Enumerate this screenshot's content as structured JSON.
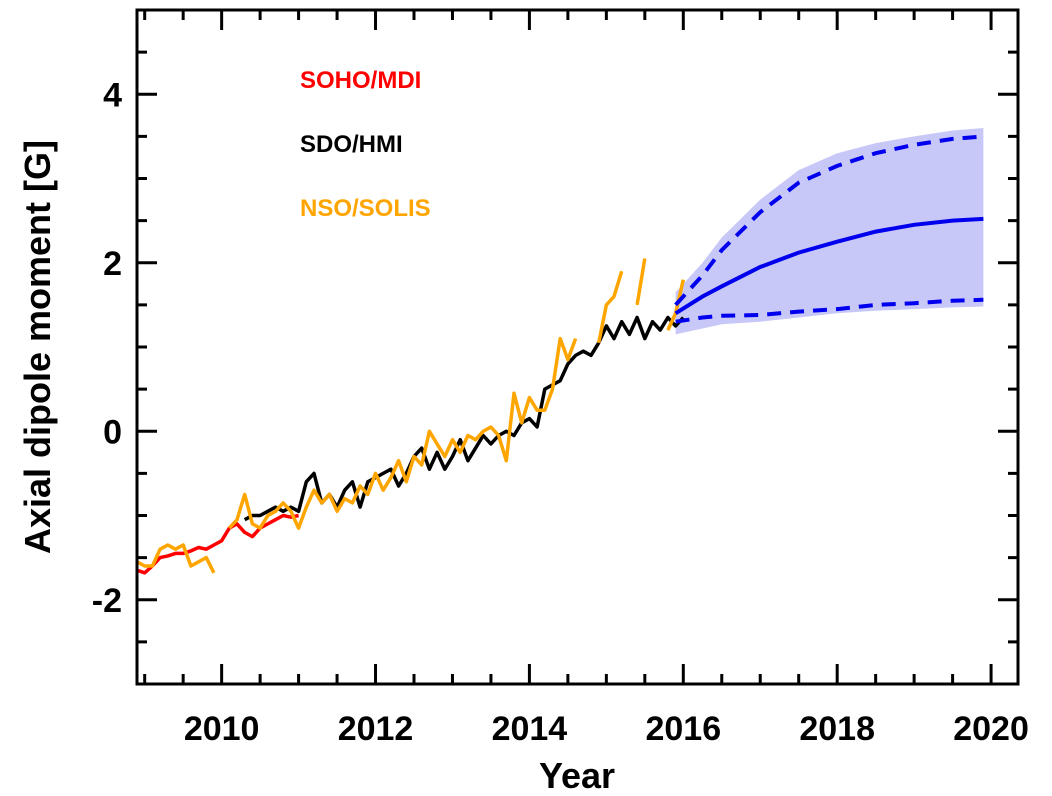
{
  "chart_data": {
    "type": "line",
    "xlabel": "Year",
    "ylabel": "Axial dipole moment [G]",
    "xlim": [
      2008.9,
      2020.35
    ],
    "ylim": [
      -3,
      5
    ],
    "xticks": [
      2010,
      2012,
      2014,
      2016,
      2018,
      2020
    ],
    "yticks": [
      -2,
      0,
      2,
      4
    ],
    "xminorticks": [
      2009,
      2009.5,
      2010.5,
      2011,
      2011.5,
      2012.5,
      2013,
      2013.5,
      2014.5,
      2015,
      2015.5,
      2016.5,
      2017,
      2017.5,
      2018.5,
      2019,
      2019.5
    ],
    "yminorticks": [
      -2.5,
      -1.5,
      -1,
      -0.5,
      0.5,
      1,
      1.5,
      2.5,
      3,
      3.5,
      4.5
    ],
    "series": [
      {
        "name": "SOHO/MDI",
        "color": "#ff0000",
        "x": [
          2008.9,
          2009.0,
          2009.1,
          2009.2,
          2009.3,
          2009.4,
          2009.5,
          2009.6,
          2009.7,
          2009.8,
          2009.9,
          2010.0,
          2010.1,
          2010.2,
          2010.3,
          2010.4,
          2010.5,
          2010.6,
          2010.7,
          2010.8,
          2010.9,
          2011.0
        ],
        "values": [
          -1.65,
          -1.68,
          -1.6,
          -1.5,
          -1.48,
          -1.45,
          -1.45,
          -1.42,
          -1.38,
          -1.4,
          -1.35,
          -1.3,
          -1.15,
          -1.1,
          -1.2,
          -1.25,
          -1.15,
          -1.1,
          -1.05,
          -1.0,
          -1.02,
          -1.0
        ]
      },
      {
        "name": "SDO/HMI",
        "color": "#000000",
        "x": [
          2010.3,
          2010.4,
          2010.5,
          2010.6,
          2010.7,
          2010.8,
          2010.9,
          2011.0,
          2011.1,
          2011.2,
          2011.3,
          2011.4,
          2011.5,
          2011.6,
          2011.7,
          2011.8,
          2011.9,
          2012.0,
          2012.1,
          2012.2,
          2012.3,
          2012.4,
          2012.5,
          2012.6,
          2012.7,
          2012.8,
          2012.9,
          2013.0,
          2013.1,
          2013.2,
          2013.3,
          2013.4,
          2013.5,
          2013.6,
          2013.7,
          2013.8,
          2013.9,
          2014.0,
          2014.1,
          2014.2,
          2014.3,
          2014.4,
          2014.5,
          2014.6,
          2014.7,
          2014.8,
          2014.9,
          2015.0,
          2015.1,
          2015.2,
          2015.3,
          2015.4,
          2015.5,
          2015.6,
          2015.7,
          2015.8,
          2015.9,
          2016.0
        ],
        "values": [
          -1.05,
          -1.0,
          -1.0,
          -0.95,
          -0.9,
          -0.95,
          -0.9,
          -0.95,
          -0.6,
          -0.5,
          -0.85,
          -0.75,
          -0.9,
          -0.7,
          -0.6,
          -0.9,
          -0.6,
          -0.55,
          -0.5,
          -0.45,
          -0.65,
          -0.5,
          -0.3,
          -0.2,
          -0.45,
          -0.25,
          -0.45,
          -0.3,
          -0.1,
          -0.35,
          -0.2,
          -0.05,
          -0.15,
          -0.05,
          0.0,
          -0.05,
          0.1,
          0.15,
          0.05,
          0.5,
          0.55,
          0.6,
          0.8,
          0.9,
          0.95,
          0.9,
          1.05,
          1.25,
          1.1,
          1.3,
          1.15,
          1.35,
          1.1,
          1.3,
          1.2,
          1.35,
          1.25,
          1.35
        ]
      },
      {
        "name": "NSO/SOLIS",
        "color": "#ffa500",
        "x": [
          2008.9,
          2009.0,
          2009.1,
          2009.2,
          2009.3,
          2009.4,
          2009.5,
          2009.6,
          2009.7,
          2009.8,
          2009.9,
          2010.0,
          2010.1,
          2010.2,
          2010.3,
          2010.4,
          2010.5,
          2010.6,
          2010.7,
          2010.8,
          2010.9,
          2011.0,
          2011.1,
          2011.2,
          2011.3,
          2011.4,
          2011.5,
          2011.6,
          2011.7,
          2011.8,
          2011.9,
          2012.0,
          2012.1,
          2012.2,
          2012.3,
          2012.4,
          2012.5,
          2012.6,
          2012.7,
          2012.8,
          2012.9,
          2013.0,
          2013.1,
          2013.2,
          2013.3,
          2013.4,
          2013.5,
          2013.6,
          2013.7,
          2013.8,
          2013.9,
          2014.0,
          2014.1,
          2014.2,
          2014.3,
          2014.4,
          2014.5,
          2014.6,
          2014.7,
          2014.8,
          2014.9,
          2015.0,
          2015.1,
          2015.2,
          2015.3,
          2015.4,
          2015.5,
          2015.6,
          2015.7,
          2015.8,
          2015.9,
          2016.0
        ],
        "values": [
          -1.55,
          -1.6,
          -1.6,
          -1.4,
          -1.35,
          -1.4,
          -1.35,
          -1.6,
          -1.55,
          -1.5,
          -1.68,
          null,
          -1.15,
          -1.05,
          -0.75,
          -1.1,
          -1.15,
          -1.0,
          -0.95,
          -0.85,
          -0.95,
          -1.15,
          -0.9,
          -0.7,
          -0.85,
          -0.75,
          -0.95,
          -0.8,
          -0.85,
          -0.65,
          -0.75,
          -0.5,
          -0.7,
          -0.55,
          -0.35,
          -0.6,
          -0.3,
          -0.4,
          0.0,
          -0.15,
          -0.3,
          -0.1,
          -0.25,
          -0.05,
          -0.1,
          0.0,
          0.05,
          -0.05,
          -0.35,
          0.45,
          0.1,
          0.4,
          0.25,
          0.25,
          0.5,
          1.1,
          0.85,
          1.1,
          null,
          null,
          1.05,
          1.5,
          1.6,
          1.9,
          null,
          1.5,
          2.05,
          null,
          null,
          1.2,
          1.4,
          1.8
        ]
      }
    ],
    "forecast": {
      "color": "#0000ee",
      "band_color": "#c8c8f8",
      "x": [
        2015.9,
        2016.25,
        2016.5,
        2017.0,
        2017.5,
        2018.0,
        2018.5,
        2019.0,
        2019.5,
        2019.9
      ],
      "mean": [
        1.4,
        1.6,
        1.72,
        1.95,
        2.12,
        2.25,
        2.37,
        2.45,
        2.5,
        2.52
      ],
      "upper": [
        1.5,
        1.85,
        2.15,
        2.6,
        2.95,
        3.15,
        3.3,
        3.4,
        3.47,
        3.5
      ],
      "lower": [
        1.3,
        1.35,
        1.37,
        1.38,
        1.42,
        1.45,
        1.5,
        1.52,
        1.55,
        1.56
      ],
      "band_lower": [
        1.15,
        1.22,
        1.27,
        1.3,
        1.35,
        1.4,
        1.43,
        1.45,
        1.47,
        1.48
      ],
      "band_upper": [
        1.65,
        2.0,
        2.3,
        2.75,
        3.1,
        3.3,
        3.42,
        3.5,
        3.57,
        3.6
      ]
    }
  }
}
